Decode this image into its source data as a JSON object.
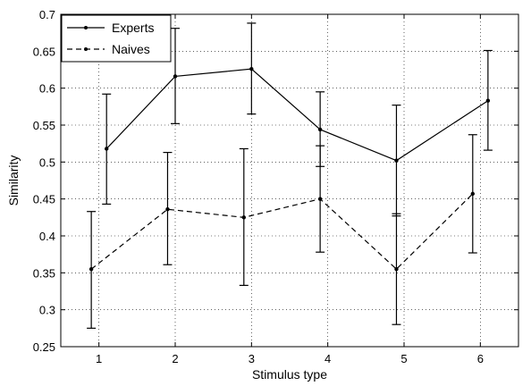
{
  "chart_data": {
    "type": "line",
    "title": "",
    "xlabel": "Stimulus type",
    "ylabel": "Similarity",
    "xlim": [
      0.5,
      6.5
    ],
    "ylim": [
      0.25,
      0.7
    ],
    "xticks": [
      1,
      2,
      3,
      4,
      5,
      6
    ],
    "yticks": [
      0.25,
      0.3,
      0.35,
      0.4,
      0.45,
      0.5,
      0.55,
      0.6,
      0.65,
      0.7
    ],
    "grid": "dotted",
    "legend_position": "top-left",
    "series": [
      {
        "name": "Experts",
        "style": "solid",
        "color": "#000000",
        "x": [
          1.1,
          2.0,
          3.0,
          3.9,
          4.9,
          6.1
        ],
        "y": [
          0.518,
          0.616,
          0.626,
          0.544,
          0.502,
          0.583
        ],
        "err_low": [
          0.443,
          0.552,
          0.565,
          0.494,
          0.427,
          0.516
        ],
        "err_high": [
          0.592,
          0.681,
          0.688,
          0.595,
          0.577,
          0.651
        ]
      },
      {
        "name": "Naives",
        "style": "dashed",
        "color": "#000000",
        "x": [
          0.9,
          1.9,
          2.9,
          3.9,
          4.9,
          5.9
        ],
        "y": [
          0.355,
          0.436,
          0.425,
          0.45,
          0.355,
          0.457
        ],
        "err_low": [
          0.275,
          0.361,
          0.333,
          0.378,
          0.28,
          0.377
        ],
        "err_high": [
          0.433,
          0.513,
          0.518,
          0.522,
          0.43,
          0.537
        ]
      }
    ]
  }
}
